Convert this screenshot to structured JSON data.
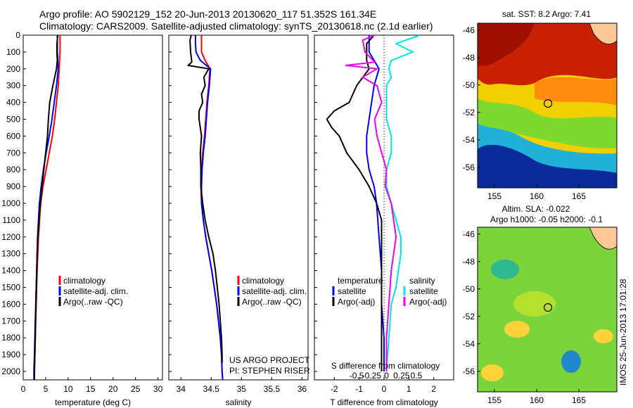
{
  "title_line1": "Argo profile: AO 5902129_152 20-Jun-2013 20130620_117 51.352S 161.34E",
  "title_line2": "Climatology: CARS2009. Satellite-adjusted climatology: synTS_20130618.nc (2.1d earlier)",
  "colors": {
    "climatology": "#ff0000",
    "satellite": "#0000ff",
    "argo": "#000000",
    "satellite_salinity": "#00e5ee",
    "argo_salinity": "#ee00ee"
  },
  "chart_data": [
    {
      "type": "line",
      "xlabel": "temperature (deg C)",
      "xlim": [
        0,
        31
      ],
      "xticks": [
        0,
        5,
        10,
        15,
        20,
        25,
        30
      ],
      "ylim": [
        0,
        2050
      ],
      "yticks": [
        0,
        100,
        200,
        300,
        400,
        500,
        600,
        700,
        800,
        900,
        1000,
        1100,
        1200,
        1300,
        1400,
        1500,
        1600,
        1700,
        1800,
        1900,
        2000
      ],
      "legend": [
        "climatology",
        "satellite-adj. clim.",
        "Argo(..raw -QC)"
      ],
      "legend_position": "bottom-center",
      "series": [
        {
          "name": "climatology",
          "color": "#ff0000",
          "y": [
            0,
            50,
            100,
            150,
            200,
            300,
            400,
            500,
            600,
            700,
            800,
            900,
            1000,
            1200,
            1400,
            1600,
            1800,
            2000,
            2050
          ],
          "x": [
            8.2,
            8.2,
            8.2,
            8.1,
            8.0,
            7.8,
            7.4,
            7.0,
            6.5,
            5.8,
            5.1,
            4.4,
            3.9,
            3.4,
            3.1,
            2.9,
            2.7,
            2.5,
            2.5
          ]
        },
        {
          "name": "satellite-adj. clim.",
          "color": "#0000ff",
          "y": [
            0,
            50,
            100,
            150,
            200,
            300,
            400,
            500,
            600,
            700,
            800,
            900,
            1000,
            1200,
            1400,
            1600,
            1800,
            2000,
            2050
          ],
          "x": [
            7.6,
            7.6,
            7.6,
            7.7,
            7.8,
            7.4,
            6.9,
            6.4,
            5.8,
            5.1,
            4.5,
            4.0,
            3.6,
            3.2,
            3.0,
            2.8,
            2.7,
            2.5,
            2.5
          ]
        },
        {
          "name": "Argo(..raw -QC)",
          "color": "#000000",
          "y": [
            0,
            50,
            100,
            150,
            200,
            250,
            300,
            400,
            500,
            600,
            700,
            800,
            900,
            1000,
            1100,
            1200,
            1300,
            1400,
            1500,
            1600,
            1700,
            1800,
            1900,
            2000,
            2050
          ],
          "x": [
            7.7,
            7.5,
            7.5,
            7.6,
            7.4,
            7.0,
            6.6,
            5.9,
            5.6,
            5.4,
            5.0,
            4.6,
            4.2,
            3.8,
            3.5,
            3.3,
            3.1,
            3.0,
            2.9,
            2.8,
            2.7,
            2.6,
            2.5,
            2.4,
            2.4
          ]
        }
      ]
    },
    {
      "type": "line",
      "xlabel": "salinity",
      "xlim": [
        33.8,
        36.1
      ],
      "xticks": [
        34,
        34.5,
        35,
        35.5,
        36
      ],
      "ylim": [
        0,
        2050
      ],
      "legend": [
        "climatology",
        "satellite-adj. clim.",
        "Argo(..raw -QC)"
      ],
      "legend_position": "bottom-right",
      "annotation": [
        "US ARGO PROJECT",
        "PI: STEPHEN RISER"
      ],
      "series": [
        {
          "name": "climatology",
          "color": "#ff0000",
          "y": [
            0,
            50,
            100,
            150,
            200,
            300,
            400,
            500,
            600,
            700,
            800,
            900,
            1000,
            1100,
            1200,
            1300,
            1400,
            1500,
            1600,
            1700,
            1800,
            1900,
            2000,
            2050
          ],
          "x": [
            34.34,
            34.34,
            34.34,
            34.4,
            34.48,
            34.46,
            34.43,
            34.41,
            34.39,
            34.36,
            34.34,
            34.33,
            34.34,
            34.37,
            34.41,
            34.46,
            34.51,
            34.55,
            34.59,
            34.62,
            34.65,
            34.67,
            34.68,
            34.69
          ]
        },
        {
          "name": "satellite-adj. clim.",
          "color": "#0000ff",
          "y": [
            0,
            50,
            100,
            150,
            200,
            300,
            400,
            500,
            600,
            700,
            800,
            900,
            1000,
            1100,
            1200,
            1300,
            1400,
            1500,
            1600,
            1700,
            1800,
            1900,
            2000,
            2050
          ],
          "x": [
            34.24,
            34.24,
            34.25,
            34.32,
            34.49,
            34.47,
            34.44,
            34.42,
            34.4,
            34.37,
            34.35,
            34.34,
            34.34,
            34.37,
            34.41,
            34.46,
            34.51,
            34.55,
            34.59,
            34.62,
            34.65,
            34.67,
            34.68,
            34.69
          ]
        },
        {
          "name": "Argo(..raw -QC)",
          "color": "#000000",
          "y": [
            0,
            30,
            100,
            160,
            180,
            200,
            250,
            300,
            350,
            400,
            450,
            500,
            550,
            600,
            700,
            800,
            900,
            1000,
            1100,
            1200,
            1300,
            1400,
            1500,
            1600,
            1700,
            1800,
            1900,
            1950
          ],
          "x": [
            34.17,
            34.15,
            34.16,
            34.18,
            34.12,
            34.46,
            34.38,
            34.4,
            34.34,
            34.36,
            34.3,
            34.3,
            34.32,
            34.34,
            34.32,
            34.33,
            34.33,
            34.36,
            34.4,
            34.46,
            34.53,
            34.57,
            34.6,
            34.63,
            34.65,
            34.67,
            34.68,
            34.68
          ]
        }
      ]
    },
    {
      "type": "line",
      "xlabel": "T difference from climatology",
      "xlim": [
        -2.8,
        2.8
      ],
      "xticks": [
        -2,
        -1,
        0,
        1,
        2
      ],
      "top_axis_label": "S difference from climatology",
      "top_axis_ticks": [
        "-0.5",
        "-0.25",
        "0",
        "0.25",
        "0.5"
      ],
      "ylim": [
        0,
        2050
      ],
      "legend": [
        "temperature",
        "satellite",
        "Argo(-adj)",
        "salinity",
        "satellite",
        "Argo(-adj)"
      ],
      "legend_position": "bottom",
      "series": [
        {
          "name": "satellite",
          "color": "#0000ff",
          "y": [
            0,
            50,
            100,
            150,
            200,
            300,
            400,
            500,
            600,
            700,
            800,
            900,
            1000,
            1200,
            1400,
            1600,
            1800,
            2000
          ],
          "x": [
            -0.6,
            -0.6,
            -0.6,
            -0.4,
            -0.2,
            -0.4,
            -0.5,
            -0.6,
            -0.7,
            -0.7,
            -0.6,
            -0.4,
            -0.3,
            -0.2,
            -0.1,
            -0.1,
            0,
            0
          ]
        },
        {
          "name": "Argo(-adj)",
          "color": "#000000",
          "y": [
            0,
            50,
            100,
            150,
            200,
            300,
            400,
            450,
            500,
            550,
            600,
            700,
            800,
            900,
            1000,
            1100,
            1200,
            1300,
            1400,
            1600,
            1800,
            2000
          ],
          "x": [
            -0.4,
            -0.7,
            -0.7,
            -0.7,
            -0.6,
            -1.1,
            -1.4,
            -2.0,
            -2.3,
            -2.1,
            -1.8,
            -1.5,
            -1.0,
            -0.6,
            -0.3,
            -0.1,
            -0.1,
            -0.1,
            -0.1,
            -0.1,
            -0.1,
            -0.1
          ]
        },
        {
          "name": "satellite",
          "color": "#00e5ee",
          "y": [
            0,
            50,
            100,
            150,
            200,
            250,
            300,
            400,
            500,
            600,
            700,
            800,
            900,
            1000,
            1100,
            1200,
            1300,
            1400,
            1500,
            1600,
            1800,
            2000
          ],
          "x": [
            0.28,
            0.08,
            0.22,
            0.04,
            0.02,
            0.04,
            0.0,
            0.0,
            0.0,
            0.04,
            0.04,
            0.0,
            0.0,
            0.04,
            0.08,
            0.12,
            0.12,
            0.1,
            0.08,
            0.04,
            0.02,
            0.0
          ]
        },
        {
          "name": "Argo(-adj)",
          "color": "#ee00ee",
          "y": [
            0,
            30,
            100,
            160,
            180,
            200,
            250,
            300,
            400,
            500,
            600,
            700,
            800,
            900,
            1000,
            1100,
            1200,
            1300,
            1400,
            1600,
            1800,
            2000
          ],
          "x": [
            -0.1,
            -0.2,
            -0.18,
            -0.1,
            -0.34,
            -0.08,
            -0.2,
            -0.08,
            -0.04,
            -0.1,
            -0.08,
            -0.04,
            0.0,
            -0.01,
            0.04,
            0.06,
            0.08,
            0.06,
            0.04,
            0.02,
            0.0,
            0.0
          ]
        }
      ]
    },
    {
      "type": "heatmap",
      "title": "sat. SST: 8.2 Argo: 7.41",
      "xlim": [
        153,
        169.5
      ],
      "ylim": [
        -57.5,
        -45.5
      ],
      "xticks": [
        155,
        160,
        165
      ],
      "yticks": [
        -46,
        -48,
        -50,
        -52,
        -54,
        -56
      ],
      "marker": {
        "lon": 161.34,
        "lat": -51.352
      }
    },
    {
      "type": "heatmap",
      "title": [
        "Altim. SLA: -0.022",
        "Argo h1000: -0.05 h2000: -0.1"
      ],
      "xlim": [
        153,
        169.5
      ],
      "ylim": [
        -57.5,
        -45.5
      ],
      "xticks": [
        155,
        160,
        165
      ],
      "yticks": [
        -46,
        -48,
        -50,
        -52,
        -54,
        -56
      ],
      "marker": {
        "lon": 161.34,
        "lat": -51.352
      }
    }
  ],
  "side_stamp": "IMOS 25-Jun-2013 17:01:28"
}
